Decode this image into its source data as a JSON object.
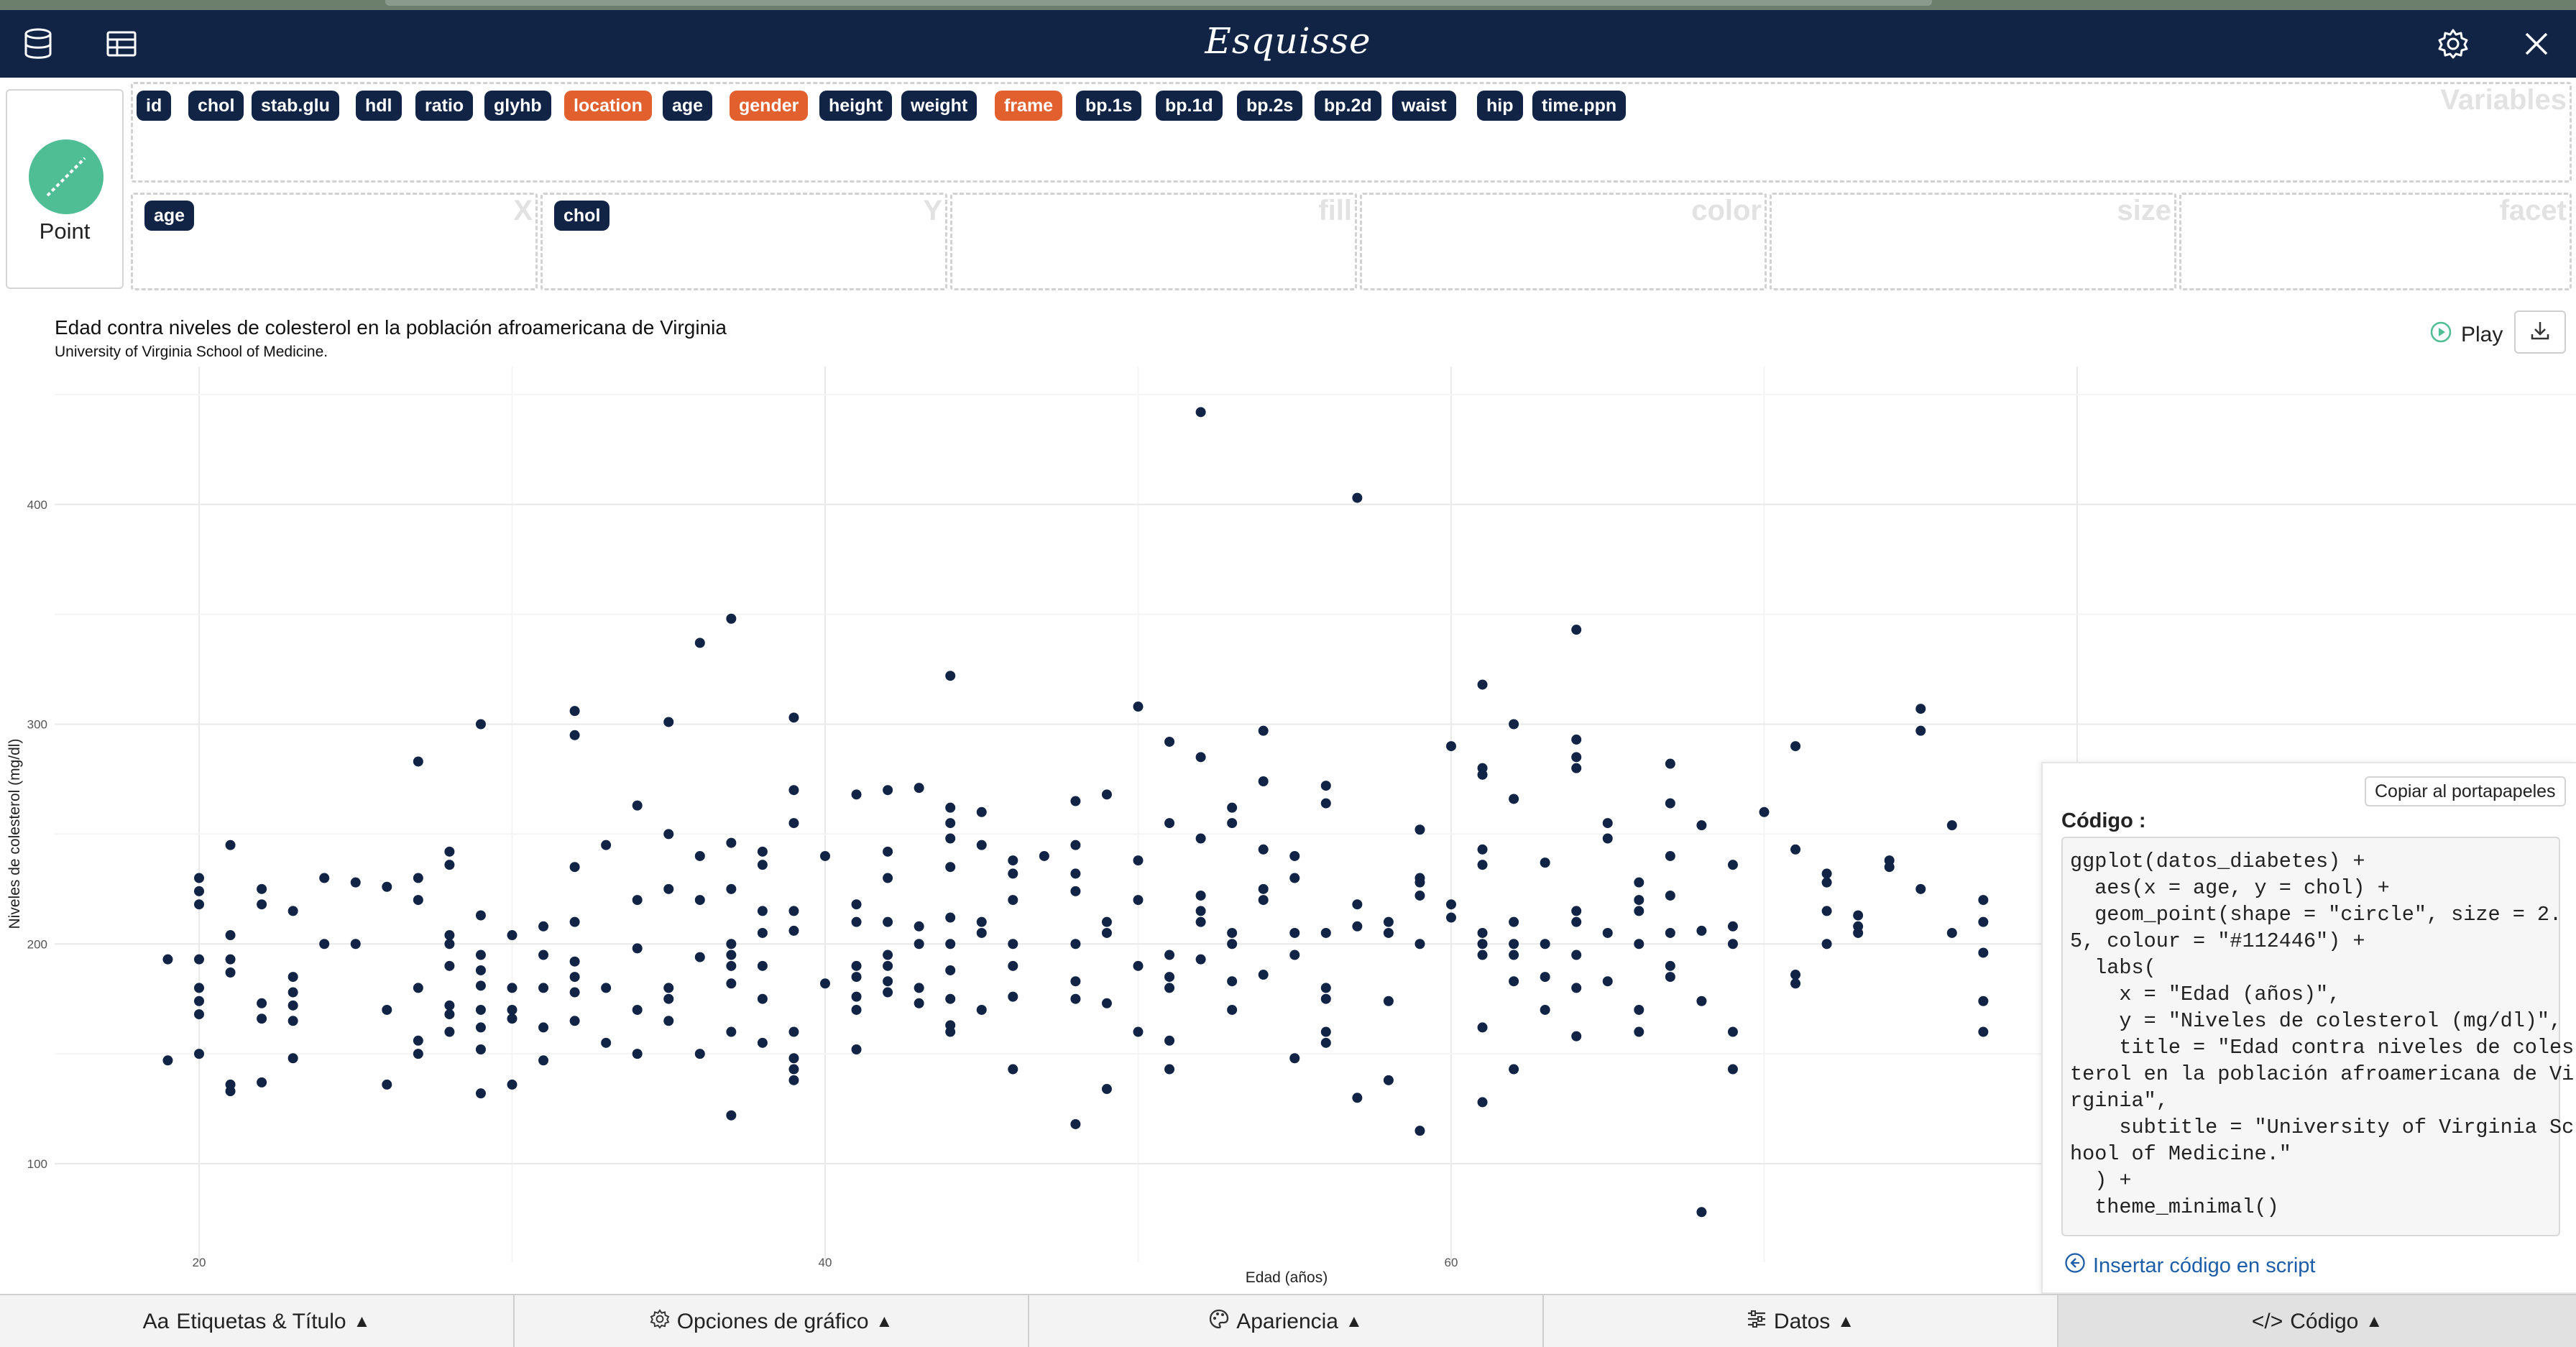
{
  "app": {
    "title": "Esquisse"
  },
  "geom": {
    "label": "Point"
  },
  "variables": {
    "title": "Variables",
    "items": [
      {
        "label": "id",
        "kind": "num"
      },
      {
        "label": "chol",
        "kind": "num"
      },
      {
        "label": "stab.glu",
        "kind": "num"
      },
      {
        "label": "hdl",
        "kind": "num"
      },
      {
        "label": "ratio",
        "kind": "num"
      },
      {
        "label": "glyhb",
        "kind": "num"
      },
      {
        "label": "location",
        "kind": "chr"
      },
      {
        "label": "age",
        "kind": "num"
      },
      {
        "label": "gender",
        "kind": "chr"
      },
      {
        "label": "height",
        "kind": "num"
      },
      {
        "label": "weight",
        "kind": "num"
      },
      {
        "label": "frame",
        "kind": "chr"
      },
      {
        "label": "bp.1s",
        "kind": "num"
      },
      {
        "label": "bp.1d",
        "kind": "num"
      },
      {
        "label": "bp.2s",
        "kind": "num"
      },
      {
        "label": "bp.2d",
        "kind": "num"
      },
      {
        "label": "waist",
        "kind": "num"
      },
      {
        "label": "hip",
        "kind": "num"
      },
      {
        "label": "time.ppn",
        "kind": "num"
      }
    ]
  },
  "mappings": {
    "x": {
      "title": "X",
      "value": "age"
    },
    "y": {
      "title": "Y",
      "value": "chol"
    },
    "fill": {
      "title": "fill"
    },
    "color": {
      "title": "color"
    },
    "size": {
      "title": "size"
    },
    "facet": {
      "title": "facet"
    }
  },
  "plot_header": {
    "play_label": "Play"
  },
  "chart_data": {
    "type": "scatter",
    "title": "Edad contra niveles de colesterol en la población afroamericana de Virginia",
    "subtitle": "University of Virginia School of Medicine.",
    "xlabel": "Edad (años)",
    "ylabel": "Niveles de colesterol (mg/dl)",
    "xlim": [
      16.5,
      78
    ],
    "ylim": [
      65,
      460
    ],
    "xticks": [
      20,
      40,
      60
    ],
    "yticks": [
      100,
      200,
      300,
      400
    ],
    "grid": true,
    "point_color": "#112446",
    "points": [
      [
        19,
        193
      ],
      [
        19,
        147
      ],
      [
        20,
        230
      ],
      [
        20,
        224
      ],
      [
        20,
        218
      ],
      [
        20,
        193
      ],
      [
        20,
        180
      ],
      [
        20,
        174
      ],
      [
        20,
        168
      ],
      [
        20,
        150
      ],
      [
        21,
        245
      ],
      [
        21,
        204
      ],
      [
        21,
        193
      ],
      [
        21,
        187
      ],
      [
        21,
        136
      ],
      [
        21,
        133
      ],
      [
        22,
        225
      ],
      [
        22,
        218
      ],
      [
        22,
        173
      ],
      [
        22,
        166
      ],
      [
        22,
        137
      ],
      [
        23,
        215
      ],
      [
        23,
        178
      ],
      [
        23,
        185
      ],
      [
        23,
        172
      ],
      [
        23,
        165
      ],
      [
        23,
        148
      ],
      [
        24,
        230
      ],
      [
        24,
        200
      ],
      [
        25,
        228
      ],
      [
        25,
        200
      ],
      [
        26,
        226
      ],
      [
        26,
        170
      ],
      [
        26,
        136
      ],
      [
        27,
        283
      ],
      [
        27,
        230
      ],
      [
        27,
        220
      ],
      [
        27,
        180
      ],
      [
        27,
        156
      ],
      [
        27,
        150
      ],
      [
        28,
        242
      ],
      [
        28,
        236
      ],
      [
        28,
        204
      ],
      [
        28,
        200
      ],
      [
        28,
        190
      ],
      [
        28,
        172
      ],
      [
        28,
        168
      ],
      [
        28,
        160
      ],
      [
        29,
        300
      ],
      [
        29,
        213
      ],
      [
        29,
        195
      ],
      [
        29,
        188
      ],
      [
        29,
        181
      ],
      [
        29,
        170
      ],
      [
        29,
        162
      ],
      [
        29,
        152
      ],
      [
        29,
        132
      ],
      [
        30,
        204
      ],
      [
        30,
        180
      ],
      [
        30,
        170
      ],
      [
        30,
        166
      ],
      [
        30,
        136
      ],
      [
        31,
        208
      ],
      [
        31,
        195
      ],
      [
        31,
        180
      ],
      [
        31,
        162
      ],
      [
        31,
        147
      ],
      [
        32,
        306
      ],
      [
        32,
        295
      ],
      [
        32,
        235
      ],
      [
        32,
        210
      ],
      [
        32,
        192
      ],
      [
        32,
        185
      ],
      [
        32,
        178
      ],
      [
        32,
        165
      ],
      [
        33,
        245
      ],
      [
        33,
        180
      ],
      [
        33,
        155
      ],
      [
        34,
        263
      ],
      [
        34,
        220
      ],
      [
        34,
        198
      ],
      [
        34,
        170
      ],
      [
        34,
        150
      ],
      [
        35,
        301
      ],
      [
        35,
        250
      ],
      [
        35,
        225
      ],
      [
        35,
        180
      ],
      [
        35,
        175
      ],
      [
        35,
        165
      ],
      [
        36,
        337
      ],
      [
        36,
        240
      ],
      [
        36,
        220
      ],
      [
        36,
        194
      ],
      [
        36,
        150
      ],
      [
        37,
        348
      ],
      [
        37,
        246
      ],
      [
        37,
        225
      ],
      [
        37,
        200
      ],
      [
        37,
        195
      ],
      [
        37,
        190
      ],
      [
        37,
        182
      ],
      [
        37,
        160
      ],
      [
        37,
        122
      ],
      [
        38,
        242
      ],
      [
        38,
        236
      ],
      [
        38,
        215
      ],
      [
        38,
        205
      ],
      [
        38,
        190
      ],
      [
        38,
        175
      ],
      [
        38,
        155
      ],
      [
        39,
        303
      ],
      [
        39,
        270
      ],
      [
        39,
        255
      ],
      [
        39,
        215
      ],
      [
        39,
        206
      ],
      [
        39,
        160
      ],
      [
        39,
        148
      ],
      [
        39,
        143
      ],
      [
        39,
        138
      ],
      [
        40,
        240
      ],
      [
        40,
        182
      ],
      [
        41,
        268
      ],
      [
        41,
        218
      ],
      [
        41,
        210
      ],
      [
        41,
        190
      ],
      [
        41,
        185
      ],
      [
        41,
        176
      ],
      [
        41,
        170
      ],
      [
        41,
        152
      ],
      [
        42,
        270
      ],
      [
        42,
        242
      ],
      [
        42,
        230
      ],
      [
        42,
        210
      ],
      [
        42,
        195
      ],
      [
        42,
        190
      ],
      [
        42,
        183
      ],
      [
        42,
        178
      ],
      [
        43,
        271
      ],
      [
        43,
        208
      ],
      [
        43,
        200
      ],
      [
        43,
        180
      ],
      [
        43,
        173
      ],
      [
        44,
        322
      ],
      [
        44,
        262
      ],
      [
        44,
        255
      ],
      [
        44,
        248
      ],
      [
        44,
        235
      ],
      [
        44,
        212
      ],
      [
        44,
        200
      ],
      [
        44,
        188
      ],
      [
        44,
        175
      ],
      [
        44,
        163
      ],
      [
        44,
        160
      ],
      [
        45,
        260
      ],
      [
        45,
        245
      ],
      [
        45,
        210
      ],
      [
        45,
        205
      ],
      [
        45,
        170
      ],
      [
        46,
        238
      ],
      [
        46,
        232
      ],
      [
        46,
        220
      ],
      [
        46,
        200
      ],
      [
        46,
        190
      ],
      [
        46,
        176
      ],
      [
        46,
        143
      ],
      [
        47,
        240
      ],
      [
        48,
        265
      ],
      [
        48,
        245
      ],
      [
        48,
        232
      ],
      [
        48,
        224
      ],
      [
        48,
        200
      ],
      [
        48,
        183
      ],
      [
        48,
        175
      ],
      [
        48,
        118
      ],
      [
        49,
        268
      ],
      [
        49,
        210
      ],
      [
        49,
        205
      ],
      [
        49,
        173
      ],
      [
        49,
        134
      ],
      [
        50,
        308
      ],
      [
        50,
        238
      ],
      [
        50,
        220
      ],
      [
        50,
        190
      ],
      [
        50,
        160
      ],
      [
        51,
        292
      ],
      [
        51,
        255
      ],
      [
        51,
        195
      ],
      [
        51,
        185
      ],
      [
        51,
        180
      ],
      [
        51,
        156
      ],
      [
        51,
        143
      ],
      [
        52,
        442
      ],
      [
        52,
        285
      ],
      [
        52,
        248
      ],
      [
        52,
        222
      ],
      [
        52,
        215
      ],
      [
        52,
        210
      ],
      [
        52,
        193
      ],
      [
        53,
        262
      ],
      [
        53,
        255
      ],
      [
        53,
        205
      ],
      [
        53,
        200
      ],
      [
        53,
        183
      ],
      [
        53,
        170
      ],
      [
        54,
        297
      ],
      [
        54,
        274
      ],
      [
        54,
        243
      ],
      [
        54,
        225
      ],
      [
        54,
        220
      ],
      [
        54,
        186
      ],
      [
        55,
        240
      ],
      [
        55,
        230
      ],
      [
        55,
        205
      ],
      [
        55,
        195
      ],
      [
        55,
        148
      ],
      [
        56,
        272
      ],
      [
        56,
        264
      ],
      [
        56,
        205
      ],
      [
        56,
        180
      ],
      [
        56,
        175
      ],
      [
        56,
        160
      ],
      [
        56,
        155
      ],
      [
        57,
        403
      ],
      [
        57,
        218
      ],
      [
        57,
        208
      ],
      [
        57,
        130
      ],
      [
        58,
        210
      ],
      [
        58,
        205
      ],
      [
        58,
        174
      ],
      [
        58,
        138
      ],
      [
        59,
        252
      ],
      [
        59,
        230
      ],
      [
        59,
        228
      ],
      [
        59,
        222
      ],
      [
        59,
        200
      ],
      [
        59,
        115
      ],
      [
        60,
        290
      ],
      [
        60,
        218
      ],
      [
        60,
        212
      ],
      [
        61,
        318
      ],
      [
        61,
        280
      ],
      [
        61,
        277
      ],
      [
        61,
        243
      ],
      [
        61,
        236
      ],
      [
        61,
        205
      ],
      [
        61,
        200
      ],
      [
        61,
        195
      ],
      [
        61,
        162
      ],
      [
        61,
        128
      ],
      [
        62,
        300
      ],
      [
        62,
        266
      ],
      [
        62,
        210
      ],
      [
        62,
        200
      ],
      [
        62,
        195
      ],
      [
        62,
        183
      ],
      [
        62,
        143
      ],
      [
        63,
        237
      ],
      [
        63,
        200
      ],
      [
        63,
        185
      ],
      [
        63,
        170
      ],
      [
        64,
        343
      ],
      [
        64,
        293
      ],
      [
        64,
        285
      ],
      [
        64,
        280
      ],
      [
        64,
        215
      ],
      [
        64,
        210
      ],
      [
        64,
        195
      ],
      [
        64,
        180
      ],
      [
        64,
        158
      ],
      [
        65,
        255
      ],
      [
        65,
        248
      ],
      [
        65,
        205
      ],
      [
        65,
        183
      ],
      [
        66,
        228
      ],
      [
        66,
        220
      ],
      [
        66,
        215
      ],
      [
        66,
        200
      ],
      [
        66,
        170
      ],
      [
        66,
        160
      ],
      [
        67,
        282
      ],
      [
        67,
        264
      ],
      [
        67,
        240
      ],
      [
        67,
        222
      ],
      [
        67,
        205
      ],
      [
        67,
        190
      ],
      [
        67,
        185
      ],
      [
        68,
        254
      ],
      [
        68,
        206
      ],
      [
        68,
        174
      ],
      [
        68,
        78
      ],
      [
        69,
        236
      ],
      [
        69,
        208
      ],
      [
        69,
        200
      ],
      [
        69,
        160
      ],
      [
        69,
        143
      ],
      [
        70,
        260
      ],
      [
        71,
        290
      ],
      [
        71,
        243
      ],
      [
        71,
        186
      ],
      [
        71,
        182
      ],
      [
        72,
        232
      ],
      [
        72,
        228
      ],
      [
        72,
        215
      ],
      [
        72,
        200
      ],
      [
        73,
        213
      ],
      [
        73,
        208
      ],
      [
        73,
        205
      ],
      [
        74,
        238
      ],
      [
        74,
        235
      ],
      [
        75,
        307
      ],
      [
        75,
        297
      ],
      [
        75,
        225
      ],
      [
        76,
        254
      ],
      [
        76,
        205
      ],
      [
        77,
        220
      ],
      [
        77,
        210
      ],
      [
        77,
        196
      ],
      [
        77,
        174
      ],
      [
        77,
        160
      ]
    ]
  },
  "code_panel": {
    "copy_label": "Copiar al portapapeles",
    "label": "Código :",
    "code": "ggplot(datos_diabetes) +\n  aes(x = age, y = chol) +\n  geom_point(shape = \"circle\", size = 2.\n5, colour = \"#112446\") +\n  labs(\n    x = \"Edad (años)\",\n    y = \"Niveles de colesterol (mg/dl)\",\n    title = \"Edad contra niveles de coles\nterol en la población afroamericana de Vi\nrginia\",\n    subtitle = \"University of Virginia Sc\nhool of Medicine.\"\n  ) +\n  theme_minimal()",
    "insert_label": "Insertar código en script"
  },
  "bottom_tabs": [
    {
      "label": "Etiquetas & Título",
      "prefix": "Aa"
    },
    {
      "label": "Opciones de gráfico"
    },
    {
      "label": "Apariencia"
    },
    {
      "label": "Datos"
    },
    {
      "label": "Código",
      "prefix": "</>"
    }
  ],
  "colors": {
    "navy": "#112446",
    "orange": "#e25f2e",
    "geom_green": "#4fbe95",
    "link_blue": "#1c5da8"
  }
}
